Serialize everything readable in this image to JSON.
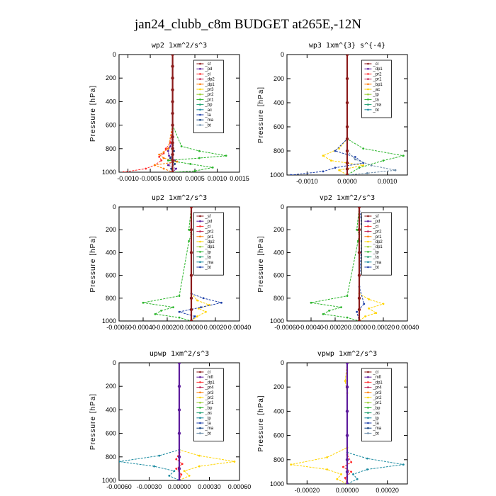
{
  "figure": {
    "title": "jan24_clubb_c8m  BUDGET at265E,-12N"
  },
  "colors": {
    "series": [
      "#8b1a1a",
      "#5d1b9c",
      "#ff2a2a",
      "#c02050",
      "#ff7a00",
      "#ffd400",
      "#9acd32",
      "#2ab52a",
      "#20a070",
      "#1a8aa0",
      "#1c3fa8",
      "#104080",
      "#6a8aa8",
      "#20c0d0"
    ],
    "frame": "#000000"
  },
  "chart_data": [
    {
      "type": "line",
      "title": "wp2  1xm^2/s^3",
      "ylabel": "Pressure [hPa]",
      "ylim": [
        1000,
        0
      ],
      "xlim": [
        -0.0012,
        0.0015
      ],
      "xticks": [
        -0.001,
        -0.0005,
        0.0,
        0.0005,
        0.001,
        0.0015
      ],
      "xtick_labels": [
        "-0.0010",
        "-0.0005",
        "0.0000",
        "0.0005",
        "0.0010",
        "0.0015"
      ],
      "yticks": [
        0,
        200,
        400,
        600,
        800,
        1000
      ],
      "legend": [
        "_sf",
        "_pd",
        "_cl",
        "_dp2",
        "_dp1",
        "_pr3",
        "_pr2",
        "_pr1",
        "_bp",
        "_ac",
        "_ta",
        "_ma",
        "_bt"
      ],
      "series": [
        {
          "color_idx": 0,
          "x": [
            0,
            0,
            0,
            0,
            0,
            0,
            0,
            0,
            0,
            0,
            0,
            0,
            0
          ],
          "y": [
            0,
            100,
            200,
            300,
            400,
            500,
            600,
            700,
            750,
            800,
            850,
            900,
            1000
          ]
        },
        {
          "color_idx": 1,
          "x": [
            0,
            0,
            0,
            0,
            0,
            -5e-05,
            -0.0001,
            -8e-05,
            5e-05,
            -0.0001,
            8e-05,
            0
          ],
          "y": [
            0,
            200,
            400,
            600,
            720,
            780,
            820,
            860,
            900,
            940,
            970,
            1000
          ]
        },
        {
          "color_idx": 2,
          "x": [
            0,
            0,
            0,
            -5e-05,
            -0.00015,
            -0.0002,
            -0.0003,
            -0.00025,
            -0.0004,
            -0.0006,
            -0.0011
          ],
          "y": [
            0,
            300,
            600,
            750,
            800,
            840,
            870,
            900,
            940,
            970,
            1000
          ]
        },
        {
          "color_idx": 4,
          "x": [
            0,
            0,
            -0.0001,
            -0.0002,
            -0.0003,
            -0.0002,
            0.0001,
            -0.0004,
            -0.0002,
            0
          ],
          "y": [
            0,
            600,
            800,
            830,
            850,
            880,
            910,
            940,
            970,
            1000
          ]
        },
        {
          "color_idx": 7,
          "x": [
            0,
            0,
            0.0002,
            0.0006,
            0.0012,
            0.0006,
            -0.0001,
            0.0004,
            0.0009,
            0.0005,
            0
          ],
          "y": [
            0,
            600,
            780,
            820,
            860,
            880,
            900,
            930,
            960,
            990,
            1000
          ]
        },
        {
          "color_idx": 11,
          "x": [
            0,
            0,
            3e-05,
            -5e-05,
            5e-05,
            -3e-05,
            0
          ],
          "y": [
            0,
            700,
            820,
            880,
            930,
            970,
            1000
          ]
        }
      ]
    },
    {
      "type": "line",
      "title": "wp3  1xm^{3} s^{-4}",
      "ylabel": "Pressure [hPa]",
      "ylim": [
        1000,
        0
      ],
      "xlim": [
        -0.0015,
        0.0015
      ],
      "xticks": [
        -0.001,
        0.0,
        0.001
      ],
      "xtick_labels": [
        "-0.0010",
        "0.0000",
        "0.0010"
      ],
      "yticks": [
        0,
        200,
        400,
        600,
        800,
        1000
      ],
      "legend": [
        "_cl",
        "_dp1",
        "_pr2",
        "_pr1",
        "_bp1",
        "_ac",
        "_tp",
        "_ta",
        "_ma",
        "_bt"
      ],
      "series": [
        {
          "color_idx": 0,
          "x": [
            0,
            0,
            0,
            0,
            0,
            0,
            0,
            0,
            0
          ],
          "y": [
            0,
            200,
            400,
            600,
            700,
            800,
            900,
            950,
            1000
          ]
        },
        {
          "color_idx": 5,
          "x": [
            0,
            0,
            -0.0002,
            -0.0006,
            -0.0004,
            0.0004,
            -0.0002,
            0
          ],
          "y": [
            0,
            700,
            780,
            840,
            880,
            920,
            960,
            1000
          ]
        },
        {
          "color_idx": 7,
          "x": [
            0,
            0,
            0.0004,
            0.0014,
            0.0009,
            0.0003,
            0
          ],
          "y": [
            0,
            700,
            780,
            840,
            880,
            940,
            1000
          ]
        },
        {
          "color_idx": 10,
          "x": [
            0,
            0,
            -0.0003,
            0.0002,
            0.0004,
            -0.0003,
            -0.0006,
            -0.0014
          ],
          "y": [
            0,
            700,
            800,
            850,
            900,
            940,
            970,
            1000
          ]
        },
        {
          "color_idx": 12,
          "x": [
            0,
            0,
            0.0002,
            0.0006,
            0.0012,
            0.0005,
            0
          ],
          "y": [
            0,
            800,
            870,
            920,
            960,
            985,
            1000
          ]
        }
      ]
    },
    {
      "type": "line",
      "title": "up2  1xm^2/s^3",
      "ylabel": "Pressure [hPa]",
      "ylim": [
        1000,
        0
      ],
      "xlim": [
        -0.0006,
        0.0004
      ],
      "xticks": [
        -0.0006,
        -0.0004,
        -0.0002,
        0.0,
        0.0002,
        0.0004
      ],
      "xtick_labels": [
        "-0.00060",
        "-0.00040",
        "-0.00020",
        "0.00000",
        "0.00020",
        "0.00040"
      ],
      "yticks": [
        0,
        200,
        400,
        600,
        800,
        1000
      ],
      "legend": [
        "_sf",
        "_pd",
        "_cl",
        "_pr2",
        "_pr1",
        "_dp2",
        "_dp1",
        "_tp",
        "_ta",
        "_ma",
        "_bt"
      ],
      "series": [
        {
          "color_idx": 0,
          "x": [
            0,
            0,
            0,
            0,
            0,
            0,
            0
          ],
          "y": [
            0,
            200,
            400,
            600,
            800,
            900,
            1000
          ]
        },
        {
          "color_idx": 7,
          "x": [
            0,
            -2e-05,
            0,
            -2e-05,
            -0.0001,
            -0.0004,
            -0.00015,
            -0.00025,
            -0.0003,
            -0.0001,
            0
          ],
          "y": [
            0,
            200,
            240,
            300,
            780,
            840,
            880,
            910,
            940,
            970,
            1000
          ]
        },
        {
          "color_idx": 5,
          "x": [
            0,
            0,
            5e-05,
            0.00015,
            6e-05,
            0.00012,
            5e-05,
            0
          ],
          "y": [
            0,
            760,
            820,
            860,
            890,
            920,
            960,
            1000
          ]
        },
        {
          "color_idx": 10,
          "x": [
            0,
            0,
            0.0001,
            0.00025,
            8e-05,
            -0.0001,
            3e-05,
            0
          ],
          "y": [
            0,
            760,
            800,
            840,
            880,
            920,
            960,
            1000
          ]
        }
      ]
    },
    {
      "type": "line",
      "title": "vp2  1xm^2/s^3",
      "ylabel": "Pressure [hPa]",
      "ylim": [
        1000,
        0
      ],
      "xlim": [
        -0.0006,
        0.0004
      ],
      "xticks": [
        -0.0006,
        -0.0004,
        -0.0002,
        0.0,
        0.0002,
        0.0004
      ],
      "xtick_labels": [
        "-0.00060",
        "-0.00040",
        "-0.00020",
        "0.00000",
        "0.00020",
        "0.00040"
      ],
      "yticks": [
        0,
        200,
        400,
        600,
        800,
        1000
      ],
      "legend": [
        "_sf",
        "_pd",
        "_cl",
        "_pr2",
        "_pr1",
        "_dp2",
        "_dp1",
        "_tp",
        "_ta",
        "_ma",
        "_bt"
      ],
      "series": [
        {
          "color_idx": 0,
          "x": [
            0,
            0,
            0,
            0,
            0,
            0,
            0
          ],
          "y": [
            0,
            200,
            400,
            600,
            800,
            900,
            1000
          ]
        },
        {
          "color_idx": 7,
          "x": [
            0,
            -2e-05,
            0,
            -1e-05,
            -0.0001,
            -0.0004,
            -0.00015,
            -0.00025,
            -0.0003,
            -0.0001,
            0
          ],
          "y": [
            0,
            200,
            240,
            300,
            780,
            840,
            880,
            910,
            940,
            970,
            1000
          ]
        },
        {
          "color_idx": 5,
          "x": [
            0,
            0,
            8e-05,
            0.0002,
            8e-05,
            0.00014,
            5e-05,
            0
          ],
          "y": [
            0,
            760,
            810,
            850,
            890,
            930,
            960,
            1000
          ]
        },
        {
          "color_idx": 10,
          "x": [
            0,
            2e-05,
            4e-05,
            2e-05,
            0,
            4e-05,
            -2e-05,
            0
          ],
          "y": [
            0,
            150,
            250,
            300,
            700,
            850,
            920,
            1000
          ]
        }
      ]
    },
    {
      "type": "line",
      "title": "upwp  1xm^2/s^3",
      "ylabel": "Pressure [hPa]",
      "ylim": [
        1000,
        0
      ],
      "xlim": [
        -0.0006,
        0.0006
      ],
      "xticks": [
        -0.0006,
        -0.0003,
        0.0,
        0.0003,
        0.0006
      ],
      "xtick_labels": [
        "-0.00060",
        "-0.00030",
        "0.00000",
        "0.00030",
        "0.00060"
      ],
      "yticks": [
        0,
        200,
        400,
        600,
        800,
        1000
      ],
      "legend": [
        "_cl",
        "_mfl",
        "_dp1",
        "_pr4",
        "_pr3",
        "_pr2",
        "_pr1",
        "_bp",
        "_ac",
        "_tp",
        "_ta",
        "_ma",
        "_bt"
      ],
      "series": [
        {
          "color_idx": 1,
          "x": [
            0,
            0,
            0,
            0,
            0,
            0,
            0
          ],
          "y": [
            0,
            200,
            400,
            600,
            800,
            900,
            1000
          ]
        },
        {
          "color_idx": 5,
          "x": [
            0,
            0,
            0.0002,
            0.00055,
            0.0002,
            5e-05,
            0.0001,
            0
          ],
          "y": [
            0,
            740,
            790,
            840,
            880,
            920,
            960,
            1000
          ]
        },
        {
          "color_idx": 9,
          "x": [
            0,
            0,
            -0.0002,
            -0.0006,
            -0.00025,
            -5e-05,
            -0.0001,
            0
          ],
          "y": [
            0,
            740,
            790,
            840,
            880,
            920,
            960,
            1000
          ]
        },
        {
          "color_idx": 2,
          "x": [
            0,
            0,
            -3e-05,
            3e-05,
            -3e-05,
            2e-05,
            0
          ],
          "y": [
            0,
            760,
            820,
            860,
            900,
            950,
            1000
          ]
        }
      ]
    },
    {
      "type": "line",
      "title": "vpwp  1xm^2/s^3",
      "ylabel": "Pressure [hPa]",
      "ylim": [
        1000,
        0
      ],
      "xlim": [
        -0.0003,
        0.0003
      ],
      "xticks": [
        -0.0002,
        0.0,
        0.0002
      ],
      "xtick_labels": [
        "-0.00020",
        "0.00000",
        "0.00020"
      ],
      "yticks": [
        0,
        200,
        400,
        600,
        800,
        1000
      ],
      "legend": [
        "_cl",
        "_mfl",
        "_dp1",
        "_pr4",
        "_pr3",
        "_pr2",
        "_pr1",
        "_bp",
        "_ac",
        "_tp",
        "_ta",
        "_ma",
        "_bt"
      ],
      "series": [
        {
          "color_idx": 1,
          "x": [
            0,
            0,
            0,
            0,
            0,
            0,
            0
          ],
          "y": [
            0,
            200,
            400,
            600,
            800,
            900,
            1000
          ]
        },
        {
          "color_idx": 5,
          "x": [
            0,
            -1e-05,
            0,
            0,
            -0.0001,
            -0.00028,
            -0.0001,
            -3e-05,
            -5e-05,
            0
          ],
          "y": [
            0,
            150,
            250,
            700,
            780,
            840,
            880,
            920,
            960,
            1000
          ]
        },
        {
          "color_idx": 9,
          "x": [
            0,
            0,
            0.0001,
            0.00028,
            0.0001,
            3e-05,
            5e-05,
            0
          ],
          "y": [
            0,
            740,
            790,
            840,
            880,
            920,
            960,
            1000
          ]
        },
        {
          "color_idx": 2,
          "x": [
            0,
            0,
            2e-05,
            -2e-05,
            2e-05,
            -1e-05,
            0
          ],
          "y": [
            0,
            760,
            820,
            860,
            900,
            950,
            1000
          ]
        }
      ]
    }
  ]
}
